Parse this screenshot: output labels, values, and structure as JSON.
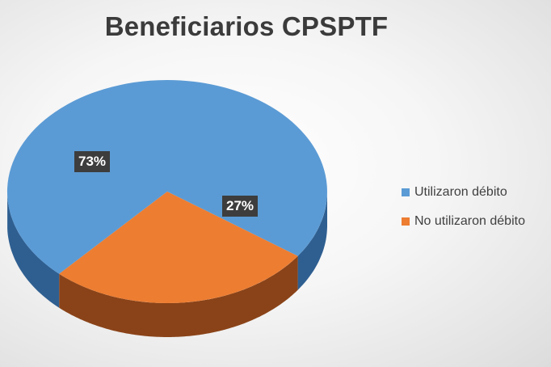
{
  "chart_data": {
    "type": "pie",
    "title": "Beneficiarios CPSPTF",
    "categories": [
      "Utilizaron débito",
      "No utilizaron débito"
    ],
    "values": [
      73,
      27
    ],
    "data_labels": [
      "73%",
      "27%"
    ],
    "colors": [
      "#5B9BD5",
      "#ED7D31"
    ],
    "dark_colors": [
      "#2F5F91",
      "#8A4318"
    ],
    "style": "3d",
    "legend_position": "right"
  }
}
